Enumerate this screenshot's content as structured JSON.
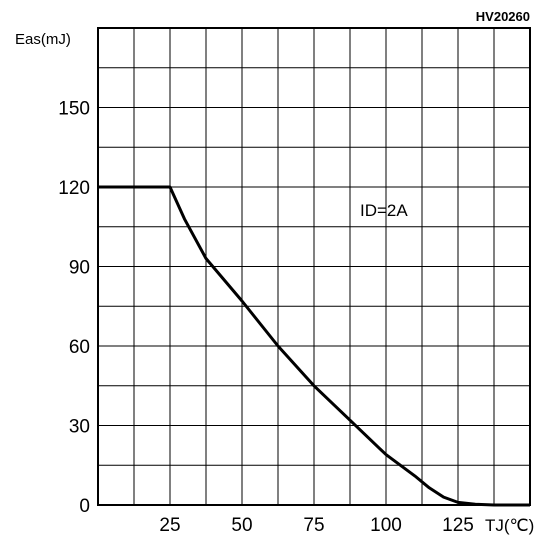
{
  "chart_data": {
    "type": "line",
    "code": "HV20260",
    "ylabel": "Eas(mJ)",
    "xlabel": "TJ(℃)",
    "annotation": "ID=2A",
    "xlim": [
      0,
      150
    ],
    "ylim": [
      0,
      180
    ],
    "xgrid_step": 12.5,
    "ygrid_step": 15,
    "grid": true,
    "x_ticks": [
      25,
      50,
      75,
      100,
      125
    ],
    "y_ticks": [
      0,
      30,
      60,
      90,
      120,
      150
    ],
    "series": [
      {
        "x": [
          0,
          25,
          30,
          37.5,
          50,
          62.5,
          75,
          87.5,
          100,
          110,
          115,
          120,
          125,
          131,
          137.5,
          150
        ],
        "y": [
          120,
          120,
          108,
          93,
          77,
          60,
          45,
          32,
          19,
          11,
          6.5,
          3,
          1,
          0.3,
          0,
          0
        ]
      }
    ]
  }
}
